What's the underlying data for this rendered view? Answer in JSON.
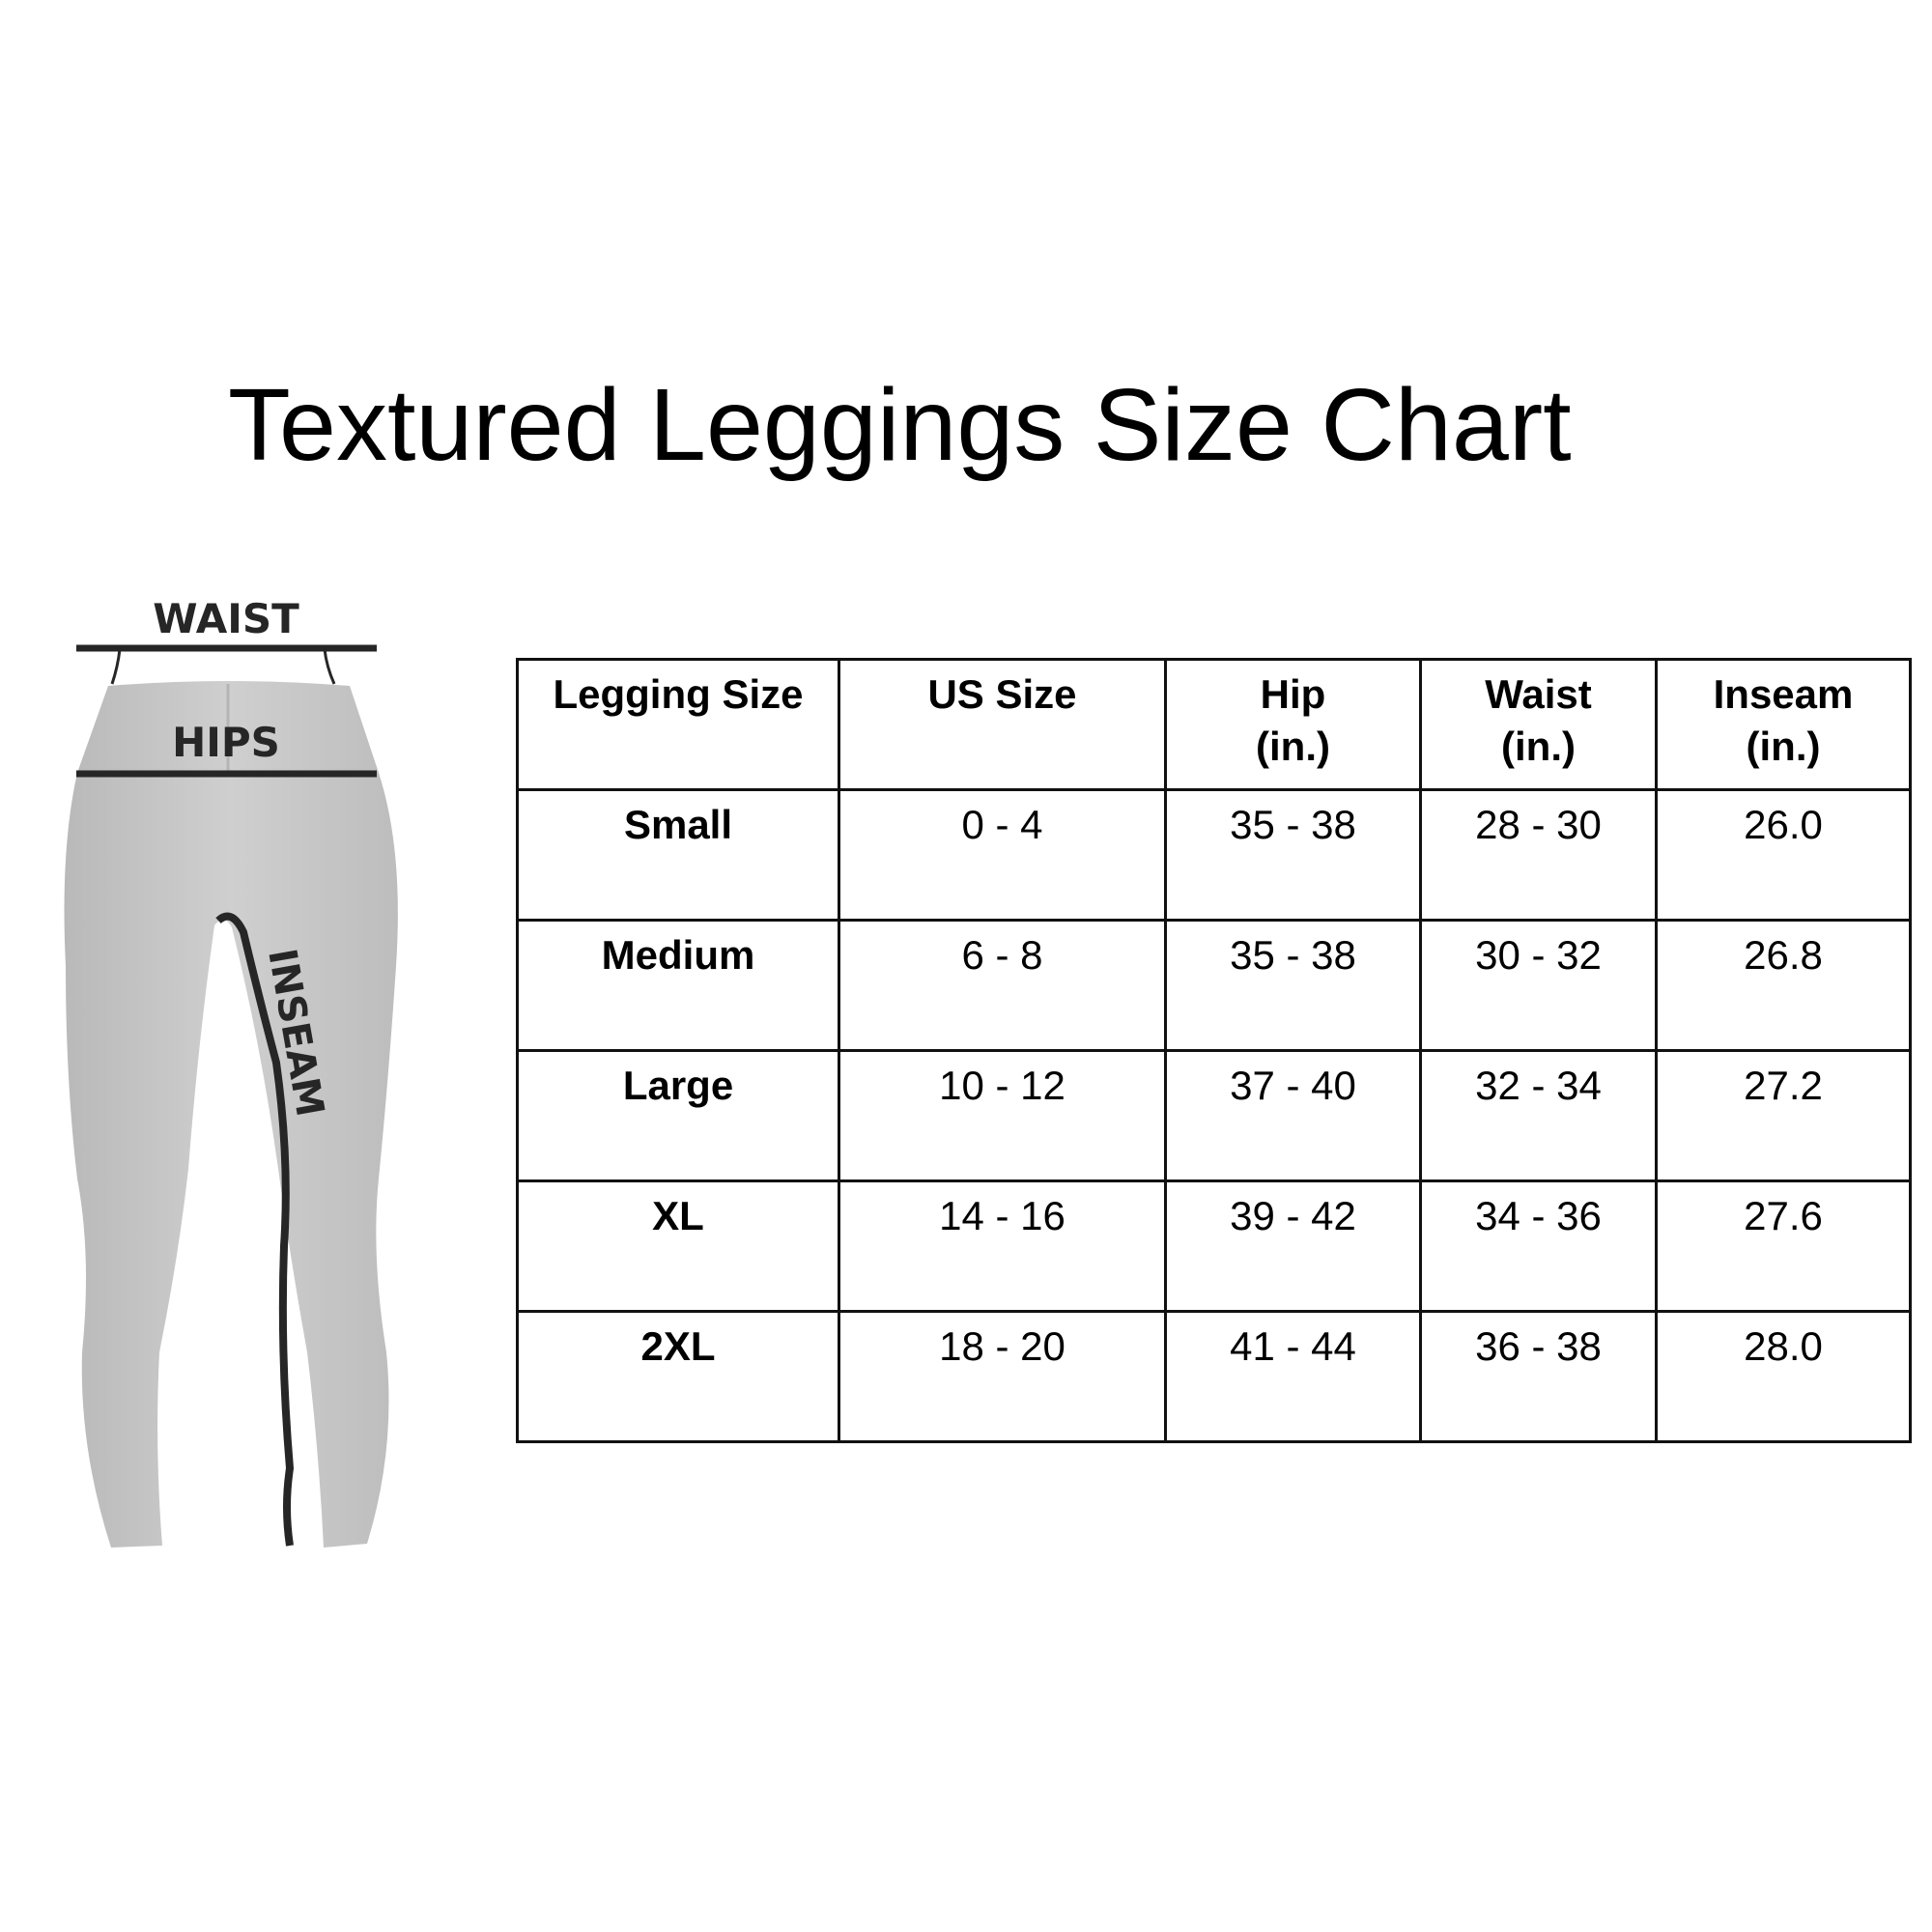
{
  "title": "Textured Leggings Size Chart",
  "figure": {
    "labels": {
      "waist": "WAIST",
      "hips": "HIPS",
      "inseam": "INSEAM"
    },
    "colors": {
      "fabric": "#c8c8c8",
      "line": "#262626"
    }
  },
  "table": {
    "headers": [
      {
        "line1": "Legging Size",
        "line2": ""
      },
      {
        "line1": "US Size",
        "line2": ""
      },
      {
        "line1": "Hip",
        "line2": "(in.)"
      },
      {
        "line1": "Waist",
        "line2": "(in.)"
      },
      {
        "line1": "Inseam",
        "line2": "(in.)"
      }
    ],
    "rows": [
      [
        "Small",
        "0 - 4",
        "35 - 38",
        "28 - 30",
        "26.0"
      ],
      [
        "Medium",
        "6 - 8",
        "35 - 38",
        "30 - 32",
        "26.8"
      ],
      [
        "Large",
        "10 - 12",
        "37 - 40",
        "32 - 34",
        "27.2"
      ],
      [
        "XL",
        "14 - 16",
        "39 - 42",
        "34 - 36",
        "27.6"
      ],
      [
        "2XL",
        "18 - 20",
        "41 - 44",
        "36 - 38",
        "28.0"
      ]
    ]
  }
}
